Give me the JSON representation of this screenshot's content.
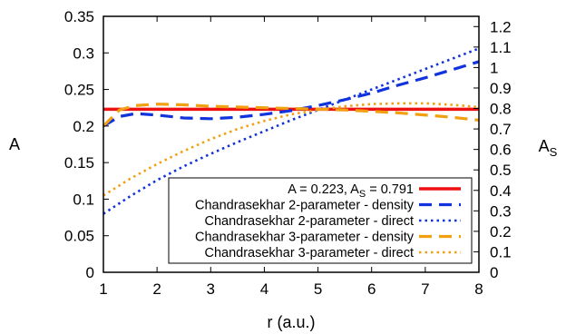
{
  "chart_data": {
    "type": "line",
    "xlabel": "r (a.u.)",
    "ylabel": "A",
    "y2label_main": "A",
    "y2label_sub": "S",
    "xlim": [
      1,
      8
    ],
    "ylim": [
      0,
      0.35
    ],
    "y2lim": [
      0,
      1.25
    ],
    "xticks": [
      "1",
      "2",
      "3",
      "4",
      "5",
      "6",
      "7",
      "8"
    ],
    "yticks": [
      "0",
      "0.05",
      "0.1",
      "0.15",
      "0.2",
      "0.25",
      "0.3",
      "0.35"
    ],
    "y2ticks": [
      "0",
      "0.1",
      "0.2",
      "0.3",
      "0.4",
      "0.5",
      "0.6",
      "0.7",
      "0.8",
      "0.9",
      "1",
      "1.1",
      "1.2"
    ],
    "legend_position": "bottom-right",
    "series": [
      {
        "name": "A = 0.223, A",
        "name_sub": "S",
        "name_tail": " = 0.791",
        "color": "#ee1111",
        "style": "solid",
        "axis": "y",
        "x": [
          1,
          8
        ],
        "y": [
          0.223,
          0.223
        ]
      },
      {
        "name": "Chandrasekhar 2-parameter - density",
        "color": "#1133dd",
        "style": "dashed",
        "axis": "y",
        "x": [
          1,
          1.3,
          1.6,
          2,
          2.5,
          3,
          3.5,
          4,
          4.5,
          5,
          5.5,
          6,
          6.5,
          7,
          7.5,
          8
        ],
        "y": [
          0.2,
          0.213,
          0.217,
          0.215,
          0.211,
          0.21,
          0.212,
          0.216,
          0.221,
          0.228,
          0.236,
          0.245,
          0.256,
          0.266,
          0.277,
          0.288
        ]
      },
      {
        "name": "Chandrasekhar 2-parameter - direct",
        "color": "#1133dd",
        "style": "dotted",
        "axis": "y",
        "x": [
          1,
          1.5,
          2,
          2.5,
          3,
          3.5,
          4,
          4.5,
          5,
          5.5,
          6,
          6.5,
          7,
          7.5,
          8
        ],
        "y": [
          0.08,
          0.104,
          0.126,
          0.145,
          0.162,
          0.178,
          0.193,
          0.208,
          0.222,
          0.236,
          0.25,
          0.264,
          0.278,
          0.292,
          0.306
        ]
      },
      {
        "name": "Chandrasekhar 3-parameter - density",
        "color": "#f0a010",
        "style": "dashed",
        "axis": "y",
        "x": [
          1,
          1.3,
          1.6,
          2,
          2.5,
          3,
          3.5,
          4,
          4.5,
          5,
          5.5,
          6,
          6.5,
          7,
          7.5,
          8
        ],
        "y": [
          0.2,
          0.222,
          0.228,
          0.23,
          0.229,
          0.227,
          0.226,
          0.225,
          0.224,
          0.223,
          0.222,
          0.22,
          0.218,
          0.215,
          0.212,
          0.208
        ]
      },
      {
        "name": "Chandrasekhar 3-parameter - direct",
        "color": "#f0a010",
        "style": "dotted",
        "axis": "y",
        "x": [
          1,
          1.5,
          2,
          2.5,
          3,
          3.5,
          4,
          4.5,
          5,
          5.5,
          6,
          6.5,
          7,
          7.5,
          8
        ],
        "y": [
          0.105,
          0.128,
          0.148,
          0.166,
          0.182,
          0.196,
          0.207,
          0.216,
          0.222,
          0.227,
          0.23,
          0.231,
          0.231,
          0.229,
          0.226
        ]
      }
    ]
  }
}
